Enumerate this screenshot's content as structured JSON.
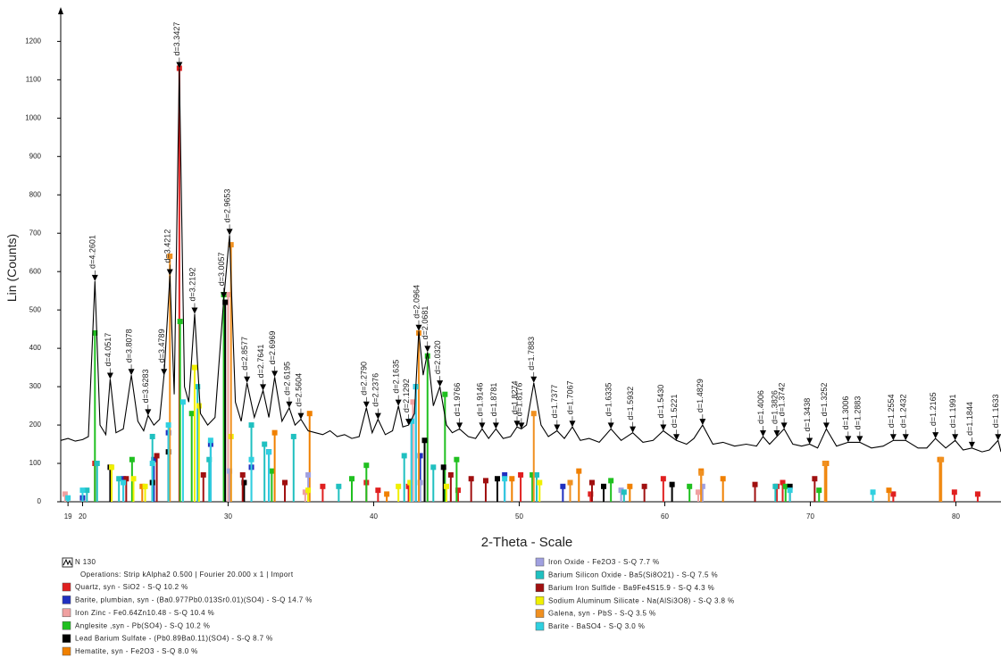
{
  "chart_data": {
    "type": "line",
    "ylabel": "Lin (Counts)",
    "xlabel": "2-Theta - Scale",
    "xlim": [
      18.5,
      83.1
    ],
    "ylim": [
      0,
      1280
    ],
    "xticks": [
      19,
      20,
      30,
      40,
      50,
      60,
      70,
      80
    ],
    "yticks": [
      0,
      100,
      200,
      300,
      400,
      500,
      600,
      700,
      800,
      900,
      1000,
      1100,
      1200
    ],
    "operations": "Operations: Strip kAlpha2 0.500 | Fourier 20.000 x 1 | Import",
    "series": [
      {
        "name": "N 130",
        "color": "#000000",
        "x": [
          18.5,
          19,
          19.5,
          20,
          20.4,
          20.85,
          21.2,
          21.6,
          21.9,
          22.3,
          22.8,
          23.35,
          23.8,
          24.2,
          24.5,
          24.9,
          25.3,
          25.6,
          26.0,
          26.3,
          26.65,
          27.0,
          27.3,
          27.7,
          28.1,
          28.6,
          29.1,
          29.7,
          30.1,
          30.5,
          30.9,
          31.3,
          31.8,
          32.4,
          32.8,
          33.2,
          33.7,
          34.2,
          34.6,
          35.0,
          35.5,
          36,
          36.5,
          37,
          37.5,
          38,
          38.5,
          39,
          39.5,
          39.9,
          40.3,
          40.8,
          41.3,
          41.7,
          42.0,
          42.4,
          42.8,
          43.1,
          43.4,
          43.7,
          44.1,
          44.55,
          45.0,
          45.4,
          45.9,
          46.5,
          47.0,
          47.45,
          47.9,
          48.4,
          48.9,
          49.4,
          49.85,
          50.15,
          50.5,
          51.0,
          51.5,
          52.0,
          52.6,
          53.1,
          53.65,
          54.2,
          54.8,
          55.5,
          56.3,
          57.0,
          57.8,
          58.5,
          59.2,
          59.9,
          60.8,
          61.5,
          62.0,
          62.6,
          63.3,
          64,
          64.8,
          65.6,
          66.3,
          66.75,
          67.2,
          67.7,
          68.2,
          68.8,
          69.4,
          69.95,
          70.5,
          71.1,
          71.8,
          72.6,
          73.4,
          74.2,
          75,
          75.7,
          76.55,
          77.4,
          78.0,
          78.6,
          79.3,
          79.95,
          80.5,
          81.1,
          81.8,
          82.3,
          82.9,
          83.1
        ],
        "values": [
          160,
          165,
          158,
          162,
          170,
          575,
          200,
          175,
          320,
          180,
          190,
          330,
          210,
          185,
          225,
          200,
          215,
          330,
          590,
          280,
          1130,
          300,
          260,
          490,
          230,
          200,
          220,
          530,
          695,
          260,
          210,
          310,
          220,
          290,
          220,
          325,
          210,
          245,
          200,
          215,
          185,
          180,
          175,
          185,
          170,
          175,
          165,
          170,
          245,
          180,
          215,
          175,
          185,
          250,
          195,
          200,
          230,
          445,
          330,
          390,
          250,
          300,
          200,
          180,
          190,
          170,
          165,
          190,
          165,
          190,
          165,
          170,
          195,
          190,
          200,
          310,
          200,
          170,
          185,
          165,
          195,
          160,
          165,
          155,
          190,
          160,
          180,
          155,
          160,
          185,
          160,
          150,
          165,
          200,
          150,
          155,
          145,
          150,
          145,
          170,
          150,
          170,
          190,
          150,
          145,
          150,
          140,
          190,
          145,
          155,
          155,
          140,
          145,
          160,
          160,
          140,
          140,
          165,
          140,
          160,
          135,
          140,
          130,
          135,
          160,
          130
        ]
      }
    ],
    "peak_labels": [
      {
        "label": "d=4.2601",
        "x": 20.85,
        "y": 575
      },
      {
        "label": "d=4.0517",
        "x": 21.9,
        "y": 320
      },
      {
        "label": "d=3.8078",
        "x": 23.35,
        "y": 330
      },
      {
        "label": "d=3.6283",
        "x": 24.5,
        "y": 225
      },
      {
        "label": "d=3.4789",
        "x": 25.6,
        "y": 330
      },
      {
        "label": "d=3.4212",
        "x": 26.0,
        "y": 590
      },
      {
        "label": "d=3.3427",
        "x": 26.65,
        "y": 1130
      },
      {
        "label": "d=3.2192",
        "x": 27.7,
        "y": 490
      },
      {
        "label": "d=3.0057",
        "x": 29.7,
        "y": 530
      },
      {
        "label": "d=2.9653",
        "x": 30.1,
        "y": 695
      },
      {
        "label": "d=2.8577",
        "x": 31.3,
        "y": 310
      },
      {
        "label": "d=2.7641",
        "x": 32.4,
        "y": 290
      },
      {
        "label": "d=2.6969",
        "x": 33.2,
        "y": 325
      },
      {
        "label": "d=2.6195",
        "x": 34.2,
        "y": 245
      },
      {
        "label": "d=2.5604",
        "x": 35.0,
        "y": 215
      },
      {
        "label": "d=2.2790",
        "x": 39.5,
        "y": 245
      },
      {
        "label": "d=2.2376",
        "x": 40.3,
        "y": 215
      },
      {
        "label": "d=2.1635",
        "x": 41.7,
        "y": 250
      },
      {
        "label": "d=2.1292",
        "x": 42.4,
        "y": 200
      },
      {
        "label": "d=2.0964",
        "x": 43.1,
        "y": 445
      },
      {
        "label": "d=2.0681",
        "x": 43.7,
        "y": 390
      },
      {
        "label": "d=2.0320",
        "x": 44.55,
        "y": 300
      },
      {
        "label": "d=1.9766",
        "x": 45.9,
        "y": 190
      },
      {
        "label": "d=1.9146",
        "x": 47.45,
        "y": 190
      },
      {
        "label": "d=1.8781",
        "x": 48.4,
        "y": 190
      },
      {
        "label": "d=1.8274",
        "x": 49.85,
        "y": 195
      },
      {
        "label": "d=1.8176",
        "x": 50.15,
        "y": 190
      },
      {
        "label": "d=1.7883",
        "x": 51.0,
        "y": 310
      },
      {
        "label": "d=1.7377",
        "x": 52.6,
        "y": 185
      },
      {
        "label": "d=1.7067",
        "x": 53.65,
        "y": 195
      },
      {
        "label": "d=1.6335",
        "x": 56.3,
        "y": 190
      },
      {
        "label": "d=1.5932",
        "x": 57.8,
        "y": 180
      },
      {
        "label": "d=1.5430",
        "x": 59.9,
        "y": 185
      },
      {
        "label": "d=1.5221",
        "x": 60.8,
        "y": 160
      },
      {
        "label": "d=1.4829",
        "x": 62.6,
        "y": 200
      },
      {
        "label": "d=1.4006",
        "x": 66.75,
        "y": 170
      },
      {
        "label": "d=1.3826",
        "x": 67.7,
        "y": 170
      },
      {
        "label": "d=1.3742",
        "x": 68.2,
        "y": 190
      },
      {
        "label": "d=1.3438",
        "x": 69.95,
        "y": 150
      },
      {
        "label": "d=1.3252",
        "x": 71.1,
        "y": 190
      },
      {
        "label": "d=1.3006",
        "x": 72.6,
        "y": 155
      },
      {
        "label": "d=1.2883",
        "x": 73.4,
        "y": 155
      },
      {
        "label": "d=1.2554",
        "x": 75.7,
        "y": 160
      },
      {
        "label": "d=1.2432",
        "x": 76.55,
        "y": 160
      },
      {
        "label": "d=1.2165",
        "x": 78.6,
        "y": 165
      },
      {
        "label": "d=1.1991",
        "x": 79.95,
        "y": 160
      },
      {
        "label": "d=1.1844",
        "x": 81.1,
        "y": 140
      },
      {
        "label": "d=1.1633",
        "x": 82.9,
        "y": 160
      }
    ],
    "phases": [
      {
        "name": "Quartz, syn - SiO2 - S-Q 10.2 %",
        "color": "#e02020",
        "x": [
          20.85,
          26.65,
          36.5,
          39.5,
          40.3,
          42.4,
          45.8,
          50.1,
          54.9,
          59.9,
          67.7,
          68.1,
          75.7,
          79.9,
          81.5
        ],
        "values": [
          100,
          1130,
          40,
          50,
          30,
          40,
          30,
          70,
          20,
          60,
          40,
          50,
          20,
          25,
          20
        ]
      },
      {
        "name": "Barite, plumbian, syn - (Ba0.977Pb0.013Sr0.01)(SO4) - S-Q 14.7 %",
        "color": "#2030c0",
        "x": [
          20.0,
          22.8,
          24.9,
          25.9,
          28.8,
          31.6,
          32.8,
          42.6,
          42.9,
          43.2,
          49.0,
          53.0
        ],
        "values": [
          10,
          60,
          110,
          180,
          150,
          90,
          130,
          210,
          300,
          120,
          70,
          40
        ]
      },
      {
        "name": "Iron Zinc - Fe0.64Zn10.48 - S-Q 10.4 %",
        "color": "#f0a0a0",
        "x": [
          18.8,
          30.0,
          35.3,
          42.7,
          62.3
        ],
        "values": [
          20,
          540,
          25,
          260,
          25
        ]
      },
      {
        "name": "Anglesite ,syn - Pb(SO4) - S-Q 10.2 %",
        "color": "#20c020",
        "x": [
          20.85,
          23.4,
          26.7,
          27.5,
          29.7,
          33.0,
          38.5,
          39.5,
          43.7,
          44.9,
          45.7,
          50.9,
          53.5,
          56.3,
          61.7,
          68.3,
          70.6
        ],
        "values": [
          440,
          110,
          470,
          230,
          540,
          80,
          60,
          95,
          380,
          280,
          110,
          70,
          50,
          55,
          40,
          40,
          30
        ]
      },
      {
        "name": "Lead Barium Sulfate - (Pb0.89Ba0.11)(SO4) - S-Q 8.7 %",
        "color": "#000000",
        "x": [
          21.9,
          24.8,
          25.9,
          29.8,
          31.1,
          43.5,
          44.8,
          48.5,
          55.8,
          60.5,
          68.6
        ],
        "values": [
          90,
          50,
          130,
          520,
          50,
          160,
          90,
          60,
          40,
          45,
          40
        ]
      },
      {
        "name": "Hematite, syn - Fe2O3 - S-Q 8.0 %",
        "color": "#f08000",
        "x": [
          24.1,
          33.2,
          35.6,
          40.9,
          49.5,
          54.1,
          57.6,
          62.5,
          64.0,
          71.1,
          75.4,
          78.9
        ],
        "values": [
          40,
          180,
          230,
          20,
          60,
          80,
          40,
          80,
          60,
          100,
          30,
          110
        ]
      },
      {
        "name": "Iron Oxide - Fe2O3 - S-Q 7.7 %",
        "color": "#a0a0e0",
        "x": [
          30.1,
          35.5,
          43.2,
          57.0,
          62.6
        ],
        "values": [
          80,
          70,
          50,
          30,
          40
        ]
      },
      {
        "name": "Barium Silicon Oxide - Ba5(Si8O21) - S-Q 7.5 %",
        "color": "#20c0c0",
        "x": [
          20.3,
          21.0,
          22.5,
          24.8,
          27.9,
          28.7,
          31.6,
          32.5,
          34.5,
          37.6,
          42.1,
          44.1,
          51.2,
          57.2,
          67.6
        ],
        "values": [
          30,
          100,
          60,
          170,
          300,
          110,
          200,
          150,
          170,
          40,
          120,
          90,
          70,
          25,
          40
        ]
      },
      {
        "name": "Barium Iron Sulfide - Ba9Fe4S15.9 - S-Q 4.3 %",
        "color": "#a01010",
        "x": [
          23.0,
          25.1,
          28.3,
          31.0,
          33.9,
          45.3,
          46.7,
          47.7,
          55.0,
          58.6,
          66.2,
          70.3
        ],
        "values": [
          60,
          120,
          70,
          70,
          50,
          70,
          60,
          55,
          50,
          40,
          45,
          60
        ]
      },
      {
        "name": "Sodium Aluminum Silicate - Na(AlSi3O8) - S-Q 3.8 %",
        "color": "#f0f000",
        "x": [
          22.0,
          23.5,
          24.3,
          27.7,
          28.0,
          30.2,
          35.5,
          41.7,
          42.5,
          45.0,
          51.4
        ],
        "values": [
          90,
          60,
          40,
          350,
          250,
          170,
          30,
          40,
          50,
          40,
          50
        ]
      },
      {
        "name": "Galena, syn - PbS - S-Q 3.5 %",
        "color": "#f09020",
        "x": [
          26.0,
          30.2,
          43.1,
          51.0,
          53.5,
          62.5,
          71.0,
          79.0
        ],
        "values": [
          640,
          670,
          440,
          230,
          50,
          75,
          100,
          110
        ]
      },
      {
        "name": "Barite - BaSO4 - S-Q 3.0 %",
        "color": "#30d0e0",
        "x": [
          19.0,
          20.0,
          22.8,
          24.8,
          25.9,
          26.9,
          28.8,
          31.6,
          32.8,
          42.6,
          42.9,
          49.0,
          68.6,
          74.3
        ],
        "values": [
          10,
          30,
          50,
          100,
          200,
          260,
          160,
          110,
          130,
          210,
          300,
          60,
          30,
          25
        ]
      }
    ]
  }
}
